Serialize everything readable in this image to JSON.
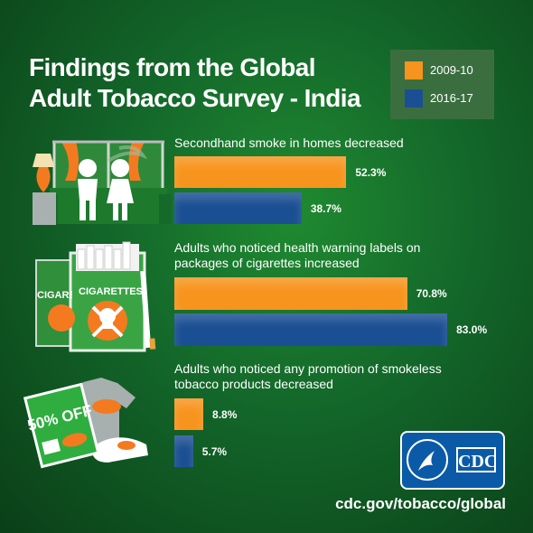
{
  "chart_data": {
    "type": "bar",
    "orientation": "horizontal",
    "title": "Findings from the Global Adult Tobacco Survey - India",
    "categories": [
      "Secondhand smoke in homes decreased",
      "Adults who noticed health warning labels on packages of cigarettes increased",
      "Adults who noticed any promotion of smokeless tobacco products decreased"
    ],
    "series": [
      {
        "name": "2009-10",
        "color": "#f7941d",
        "values": [
          52.3,
          70.8,
          8.8
        ],
        "value_labels": [
          "52.3%",
          "70.8%",
          "8.8%"
        ]
      },
      {
        "name": "2016-17",
        "color": "#1b4f93",
        "values": [
          38.7,
          83.0,
          5.7
        ],
        "value_labels": [
          "38.7%",
          "83.0%",
          "5.7%"
        ]
      }
    ]
  },
  "illustration_texts": {
    "pack_front": "CIGARETTES",
    "pack_back": "CIGARETTES",
    "coupon": "50% OFF"
  },
  "logo": "CDC",
  "source": "cdc.gov/tobacco/global"
}
